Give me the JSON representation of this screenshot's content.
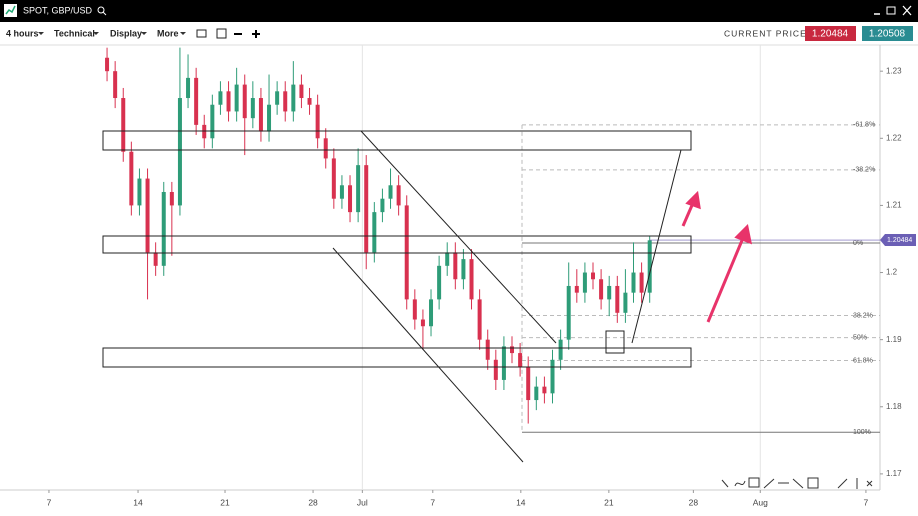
{
  "window": {
    "title": "SPOT, GBP/USD"
  },
  "toolbar": {
    "interval": "4 hours",
    "menus": [
      "Technical",
      "Display",
      "More"
    ],
    "price_label": "CURRENT PRICE:",
    "bid": "1.20484",
    "ask": "1.20508"
  },
  "chart_data": {
    "type": "candlestick",
    "xlim": [
      -2.78,
      47.2
    ],
    "xticks": [
      {
        "value": 0,
        "label": "7"
      },
      {
        "value": 5.06,
        "label": "14"
      },
      {
        "value": 10,
        "label": "21"
      },
      {
        "value": 15,
        "label": "28"
      },
      {
        "value": 17.8,
        "label": "Jul"
      },
      {
        "value": 21.8,
        "label": "7"
      },
      {
        "value": 26.8,
        "label": "14"
      },
      {
        "value": 31.8,
        "label": "21"
      },
      {
        "value": 36.6,
        "label": "28"
      },
      {
        "value": 40.4,
        "label": "Aug"
      },
      {
        "value": 46.4,
        "label": "7"
      }
    ],
    "ylim": [
      1.1676,
      1.2339
    ],
    "yticks": [
      1.17,
      1.18,
      1.19,
      1.2,
      1.21,
      1.22,
      1.23
    ],
    "up_color": "#2e9c78",
    "down_color": "#d8314f",
    "last_price": 1.20484,
    "fib_levels": [
      {
        "value": 1.222,
        "label": "-61.8%"
      },
      {
        "value": 1.2153,
        "label": "-38.2%"
      },
      {
        "value": 1.2044,
        "label": "0%"
      },
      {
        "value": 1.1936,
        "label": "38.2%"
      },
      {
        "value": 1.1903,
        "label": "50%"
      },
      {
        "value": 1.1869,
        "label": "61.8%"
      },
      {
        "value": 1.1762,
        "label": "100%"
      }
    ],
    "x": [
      3.3,
      3.76,
      4.22,
      4.68,
      5.14,
      5.6,
      6.06,
      6.52,
      6.98,
      7.44,
      7.9,
      8.36,
      8.82,
      9.28,
      9.74,
      10.2,
      10.66,
      11.12,
      11.58,
      12.04,
      12.5,
      12.96,
      13.42,
      13.88,
      14.34,
      14.8,
      15.26,
      15.72,
      16.18,
      16.64,
      17.1,
      17.56,
      18.02,
      18.48,
      18.94,
      19.4,
      19.86,
      20.32,
      20.78,
      21.24,
      21.7,
      22.16,
      22.62,
      23.08,
      23.54,
      24.0,
      24.46,
      24.92,
      25.38,
      25.84,
      26.3,
      26.76,
      27.22,
      27.68,
      28.14,
      28.6,
      29.06,
      29.52,
      29.98,
      30.44,
      30.9,
      31.36,
      31.82,
      32.28,
      32.74,
      33.2,
      33.66,
      34.12
    ],
    "open": [
      1.232,
      1.23,
      1.226,
      1.218,
      1.21,
      1.214,
      1.203,
      1.201,
      1.212,
      1.21,
      1.226,
      1.229,
      1.222,
      1.22,
      1.225,
      1.227,
      1.224,
      1.228,
      1.223,
      1.226,
      1.221,
      1.225,
      1.227,
      1.224,
      1.228,
      1.226,
      1.225,
      1.22,
      1.217,
      1.211,
      1.213,
      1.209,
      1.216,
      1.203,
      1.209,
      1.211,
      1.213,
      1.21,
      1.196,
      1.193,
      1.192,
      1.196,
      1.201,
      1.203,
      1.199,
      1.202,
      1.196,
      1.19,
      1.187,
      1.184,
      1.189,
      1.188,
      1.186,
      1.181,
      1.183,
      1.182,
      1.187,
      1.19,
      1.198,
      1.197,
      1.2,
      1.199,
      1.196,
      1.198,
      1.194,
      1.197,
      1.2,
      1.197
    ],
    "high": [
      1.2335,
      1.2315,
      1.2275,
      1.2195,
      1.2155,
      1.2155,
      1.2045,
      1.2135,
      1.2135,
      1.2335,
      1.2325,
      1.2305,
      1.2235,
      1.2265,
      1.2285,
      1.2285,
      1.2305,
      1.2295,
      1.2285,
      1.2275,
      1.2295,
      1.2285,
      1.2285,
      1.2315,
      1.2295,
      1.2275,
      1.2265,
      1.2215,
      1.2185,
      1.2145,
      1.2145,
      1.2185,
      1.2175,
      1.2105,
      1.2125,
      1.2155,
      1.2145,
      1.2115,
      1.1975,
      1.1945,
      1.1975,
      1.2025,
      1.2045,
      1.2045,
      1.2035,
      1.2035,
      1.1975,
      1.1915,
      1.1885,
      1.1905,
      1.1905,
      1.1895,
      1.1875,
      1.1845,
      1.1845,
      1.1885,
      1.1915,
      1.2015,
      1.2005,
      1.2015,
      1.2015,
      1.2005,
      1.1995,
      1.1995,
      1.2005,
      1.2045,
      1.2015,
      1.2055
    ],
    "low": [
      1.2285,
      1.2245,
      1.2165,
      1.2085,
      1.2085,
      1.196,
      1.1995,
      1.1995,
      1.2025,
      1.2085,
      1.2245,
      1.2205,
      1.2185,
      1.2185,
      1.2235,
      1.2225,
      1.2225,
      1.2175,
      1.2215,
      1.2195,
      1.2195,
      1.2235,
      1.2225,
      1.2225,
      1.2245,
      1.2235,
      1.2185,
      1.2155,
      1.2095,
      1.2095,
      1.2075,
      1.2075,
      1.2005,
      1.2015,
      1.2075,
      1.2095,
      1.2085,
      1.1945,
      1.1915,
      1.1885,
      1.1905,
      1.1945,
      1.1995,
      1.1975,
      1.1975,
      1.1945,
      1.1885,
      1.1855,
      1.1825,
      1.1825,
      1.1865,
      1.1845,
      1.1775,
      1.1795,
      1.1805,
      1.1805,
      1.1855,
      1.1885,
      1.1955,
      1.1955,
      1.1975,
      1.1945,
      1.1935,
      1.1925,
      1.1925,
      1.1955,
      1.1955,
      1.1955
    ],
    "close": [
      1.23,
      1.226,
      1.218,
      1.21,
      1.214,
      1.203,
      1.201,
      1.212,
      1.21,
      1.226,
      1.229,
      1.222,
      1.22,
      1.225,
      1.227,
      1.224,
      1.228,
      1.223,
      1.226,
      1.221,
      1.225,
      1.227,
      1.224,
      1.228,
      1.226,
      1.225,
      1.22,
      1.217,
      1.211,
      1.213,
      1.209,
      1.216,
      1.203,
      1.209,
      1.211,
      1.213,
      1.21,
      1.196,
      1.193,
      1.192,
      1.196,
      1.201,
      1.203,
      1.199,
      1.202,
      1.196,
      1.19,
      1.187,
      1.184,
      1.189,
      1.188,
      1.186,
      1.181,
      1.183,
      1.182,
      1.187,
      1.19,
      1.198,
      1.197,
      1.2,
      1.199,
      1.196,
      1.198,
      1.194,
      1.197,
      1.2,
      1.197,
      1.2048
    ]
  }
}
